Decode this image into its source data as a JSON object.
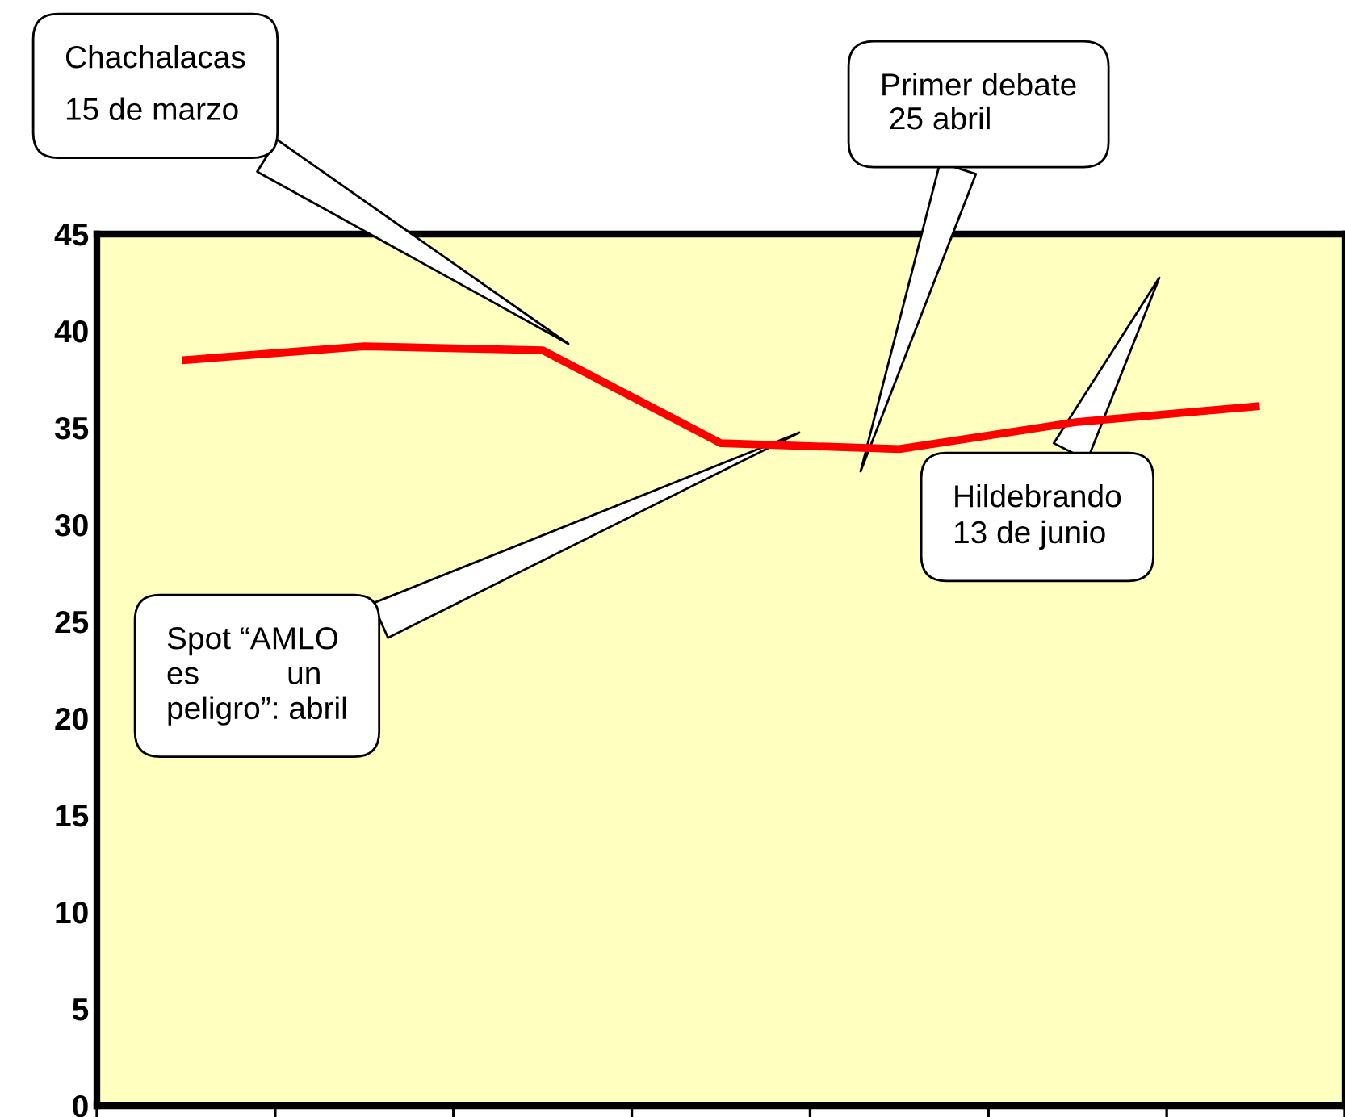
{
  "chart_data": {
    "type": "line",
    "categories": [
      null,
      null,
      null,
      null,
      null,
      null,
      null
    ],
    "series": [
      {
        "color": "#ff0000",
        "values": [
          38.5,
          39.2,
          39.0,
          34.2,
          33.9,
          35.3,
          36.1
        ]
      }
    ],
    "ylim": [
      0,
      45
    ],
    "yticks": [
      0,
      5,
      10,
      15,
      20,
      25,
      30,
      35,
      40,
      45
    ],
    "grid": false,
    "legend": false,
    "marker": "none",
    "line_style": "solid",
    "tick_labels": "y",
    "annotations": [
      "Chachalacas\n15 de marzo",
      "Primer debate\n 25 abril",
      "Spot “AMLO\nes          un\npeligro”: abril",
      "Hildebrando\n13 de junio"
    ]
  }
}
